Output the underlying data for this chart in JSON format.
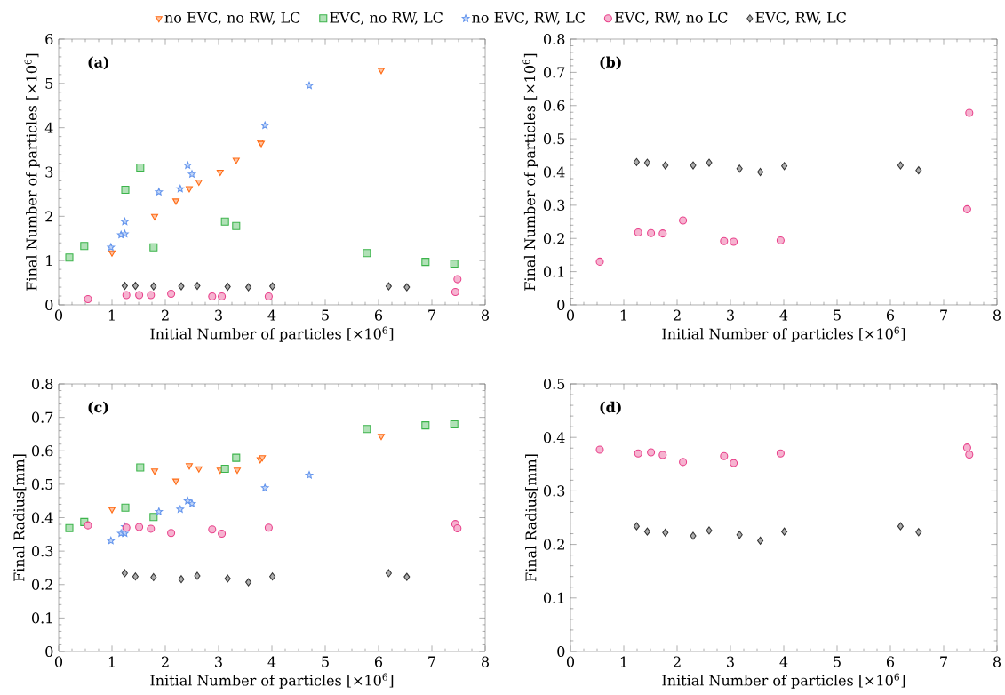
{
  "chart_data": [
    {
      "type": "scatter",
      "annotations": [
        "(a)"
      ],
      "xlabel": "Initial Number of particles [×10$^{6}$]",
      "ylabel": "Final Number of particles [×10$^{6}$]",
      "xlim": [
        0,
        8
      ],
      "ylim": [
        0,
        6
      ],
      "xticks": [
        0,
        1,
        2,
        3,
        4,
        5,
        6,
        7,
        8
      ],
      "yticks": [
        0,
        1,
        2,
        3,
        4,
        5,
        6
      ],
      "legend": "top",
      "series": [
        {
          "name": "no EVC, no RW, LC",
          "color": "#ff6a13",
          "marker": "triangle",
          "x": [
            1.0,
            1.8,
            2.2,
            2.45,
            2.63,
            3.03,
            3.33,
            3.78,
            3.8,
            6.05
          ],
          "values": [
            1.18,
            2.0,
            2.35,
            2.63,
            2.78,
            3.0,
            3.27,
            3.68,
            3.65,
            5.3
          ]
        },
        {
          "name": "EVC, no RW, LC",
          "color": "#3cb44b",
          "marker": "square",
          "x": [
            0.2,
            0.48,
            1.25,
            1.53,
            1.78,
            3.12,
            3.33,
            5.78,
            6.88,
            7.42
          ],
          "values": [
            1.07,
            1.33,
            2.6,
            3.1,
            1.3,
            1.88,
            1.78,
            1.17,
            0.97,
            0.93
          ]
        },
        {
          "name": "no EVC, RW, LC",
          "color": "#6495ed",
          "marker": "star",
          "x": [
            0.98,
            1.17,
            1.24,
            1.24,
            1.88,
            2.28,
            2.42,
            2.5,
            3.87,
            4.7
          ],
          "values": [
            1.3,
            1.58,
            1.6,
            1.88,
            2.55,
            2.62,
            3.15,
            2.95,
            4.05,
            4.95
          ]
        },
        {
          "name": "EVC, RW, no LC",
          "color": "#e8408a",
          "marker": "circle",
          "x": [
            0.55,
            1.27,
            1.51,
            1.73,
            2.11,
            2.88,
            3.06,
            3.94,
            7.44,
            7.48
          ],
          "values": [
            0.13,
            0.22,
            0.22,
            0.22,
            0.25,
            0.19,
            0.19,
            0.19,
            0.29,
            0.58
          ]
        },
        {
          "name": "EVC, RW, LC",
          "color": "#333333",
          "marker": "diamond",
          "x": [
            1.24,
            1.44,
            1.78,
            2.3,
            2.6,
            3.17,
            3.56,
            4.01,
            6.19,
            6.53
          ],
          "values": [
            0.43,
            0.43,
            0.42,
            0.42,
            0.43,
            0.41,
            0.4,
            0.42,
            0.42,
            0.4
          ]
        }
      ]
    },
    {
      "type": "scatter",
      "annotations": [
        "(b)"
      ],
      "xlabel": "Initial Number of particles [×10$^{6}$]",
      "ylabel": "Final Number of particles [×10$^{6}$]",
      "xlim": [
        0,
        8
      ],
      "ylim": [
        0,
        0.8
      ],
      "xticks": [
        0,
        1,
        2,
        3,
        4,
        5,
        6,
        7,
        8
      ],
      "yticks": [
        0,
        0.1,
        0.2,
        0.3,
        0.4,
        0.5,
        0.6,
        0.7,
        0.8
      ],
      "series": [
        {
          "color": "#e8408a",
          "marker": "circle",
          "x": [
            0.55,
            1.27,
            1.51,
            1.73,
            2.11,
            2.88,
            3.06,
            3.94,
            7.44,
            7.48
          ],
          "values": [
            0.13,
            0.218,
            0.216,
            0.215,
            0.254,
            0.192,
            0.19,
            0.194,
            0.288,
            0.578
          ]
        },
        {
          "color": "#333333",
          "marker": "diamond",
          "x": [
            1.24,
            1.44,
            1.78,
            2.3,
            2.6,
            3.17,
            3.56,
            4.01,
            6.19,
            6.53
          ],
          "values": [
            0.43,
            0.428,
            0.42,
            0.42,
            0.428,
            0.41,
            0.4,
            0.418,
            0.42,
            0.405
          ]
        }
      ]
    },
    {
      "type": "scatter",
      "annotations": [
        "(c)"
      ],
      "xlabel": "Initial Number of particles [×10$^{6}$]",
      "ylabel": "Final Radius[mm]",
      "xlim": [
        0,
        8
      ],
      "ylim": [
        0,
        0.8
      ],
      "xticks": [
        0,
        1,
        2,
        3,
        4,
        5,
        6,
        7,
        8
      ],
      "yticks": [
        0,
        0.1,
        0.2,
        0.3,
        0.4,
        0.5,
        0.6,
        0.7,
        0.8
      ],
      "series": [
        {
          "color": "#ff6a13",
          "marker": "triangle",
          "x": [
            1.0,
            1.8,
            2.2,
            2.45,
            2.63,
            3.03,
            3.35,
            3.78,
            3.82,
            6.05
          ],
          "values": [
            0.425,
            0.54,
            0.51,
            0.556,
            0.547,
            0.543,
            0.543,
            0.574,
            0.58,
            0.644
          ]
        },
        {
          "color": "#3cb44b",
          "marker": "square",
          "x": [
            0.2,
            0.48,
            1.25,
            1.53,
            1.78,
            3.12,
            3.33,
            5.78,
            6.88,
            7.42
          ],
          "values": [
            0.369,
            0.387,
            0.43,
            0.55,
            0.402,
            0.546,
            0.579,
            0.665,
            0.676,
            0.679
          ]
        },
        {
          "color": "#6495ed",
          "marker": "star",
          "x": [
            0.98,
            1.17,
            1.24,
            1.24,
            1.88,
            2.28,
            2.42,
            2.5,
            3.87,
            4.7
          ],
          "values": [
            0.331,
            0.353,
            0.353,
            0.373,
            0.418,
            0.425,
            0.45,
            0.442,
            0.489,
            0.527
          ]
        },
        {
          "color": "#e8408a",
          "marker": "circle",
          "x": [
            0.55,
            1.27,
            1.51,
            1.73,
            2.11,
            2.88,
            3.06,
            3.94,
            7.44,
            7.48
          ],
          "values": [
            0.377,
            0.37,
            0.372,
            0.367,
            0.354,
            0.365,
            0.352,
            0.37,
            0.381,
            0.368
          ]
        },
        {
          "color": "#333333",
          "marker": "diamond",
          "x": [
            1.24,
            1.44,
            1.78,
            2.3,
            2.6,
            3.17,
            3.56,
            4.01,
            6.19,
            6.53
          ],
          "values": [
            0.234,
            0.224,
            0.222,
            0.216,
            0.226,
            0.218,
            0.207,
            0.224,
            0.234,
            0.223
          ]
        }
      ]
    },
    {
      "type": "scatter",
      "annotations": [
        "(d)"
      ],
      "xlabel": "Initial Number of particles [×10$^{6}$]",
      "ylabel": "Final Radius[mm]",
      "xlim": [
        0,
        8
      ],
      "ylim": [
        0,
        0.5
      ],
      "xticks": [
        0,
        1,
        2,
        3,
        4,
        5,
        6,
        7,
        8
      ],
      "yticks": [
        0,
        0.1,
        0.2,
        0.3,
        0.4,
        0.5
      ],
      "series": [
        {
          "color": "#e8408a",
          "marker": "circle",
          "x": [
            0.55,
            1.27,
            1.51,
            1.73,
            2.11,
            2.88,
            3.06,
            3.94,
            7.44,
            7.48
          ],
          "values": [
            0.377,
            0.37,
            0.372,
            0.367,
            0.354,
            0.365,
            0.352,
            0.37,
            0.381,
            0.368
          ]
        },
        {
          "color": "#333333",
          "marker": "diamond",
          "x": [
            1.24,
            1.44,
            1.78,
            2.3,
            2.6,
            3.17,
            3.56,
            4.01,
            6.19,
            6.53
          ],
          "values": [
            0.234,
            0.224,
            0.222,
            0.216,
            0.226,
            0.218,
            0.207,
            0.224,
            0.234,
            0.223
          ]
        }
      ]
    }
  ]
}
